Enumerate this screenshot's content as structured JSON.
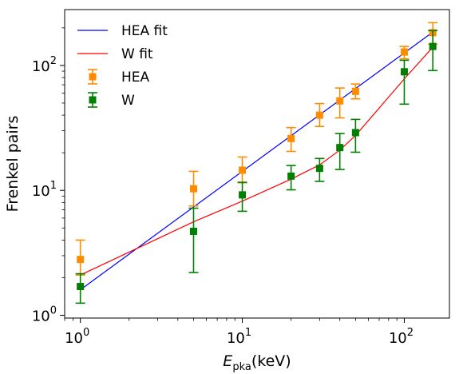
{
  "chart_data": {
    "type": "scatter",
    "xscale": "log",
    "yscale": "log",
    "xlim": [
      0.8,
      190
    ],
    "ylim": [
      0.95,
      280
    ],
    "xlabel": "E_pka(keV)",
    "xlabel_base": "E",
    "xlabel_sub": "pka",
    "xlabel_unit": "(keV)",
    "ylabel": "Frenkel pairs",
    "grid": false,
    "legend_position": "top-left",
    "x_ticks": [
      {
        "base": "10",
        "exp": "0",
        "value": 1
      },
      {
        "base": "10",
        "exp": "1",
        "value": 10
      },
      {
        "base": "10",
        "exp": "2",
        "value": 100
      }
    ],
    "y_ticks": [
      {
        "base": "10",
        "exp": "0",
        "value": 1
      },
      {
        "base": "10",
        "exp": "1",
        "value": 10
      },
      {
        "base": "10",
        "exp": "2",
        "value": 100
      }
    ],
    "series": [
      {
        "name": "HEA fit",
        "kind": "line",
        "color": "#0000ff",
        "x": [
          1,
          150
        ],
        "y": [
          1.6,
          185
        ]
      },
      {
        "name": "W fit",
        "kind": "line",
        "color": "#ff0000",
        "x": [
          1,
          5,
          10,
          20,
          30,
          40,
          50,
          100,
          150
        ],
        "y": [
          2.1,
          5.6,
          8.2,
          12.3,
          16.0,
          21.0,
          27.5,
          78,
          140
        ]
      },
      {
        "name": "HEA",
        "kind": "points",
        "marker": "square",
        "color": "#ff8c00",
        "x": [
          1,
          5,
          10,
          20,
          30,
          40,
          50,
          100,
          150
        ],
        "y": [
          2.8,
          10.3,
          14.5,
          26,
          40,
          52,
          62,
          128,
          183
        ],
        "yerr_low": [
          2.1,
          7.5,
          11.5,
          20.5,
          32.5,
          38,
          54,
          113,
          148
        ],
        "yerr_high": [
          4.0,
          14.2,
          18.5,
          31.8,
          49.5,
          66,
          71,
          142,
          220
        ]
      },
      {
        "name": "W",
        "kind": "points",
        "marker": "square",
        "color": "#008000",
        "x": [
          1,
          5,
          10,
          20,
          30,
          40,
          50,
          100,
          150
        ],
        "y": [
          1.7,
          4.7,
          9.2,
          13,
          15,
          22,
          29,
          89,
          142
        ],
        "yerr_low": [
          1.25,
          2.2,
          6.8,
          10.1,
          11.8,
          14.7,
          20.2,
          49,
          91
        ],
        "yerr_high": [
          2.15,
          7.2,
          11.6,
          15.8,
          18.0,
          28.5,
          37,
          110,
          190
        ]
      }
    ]
  }
}
